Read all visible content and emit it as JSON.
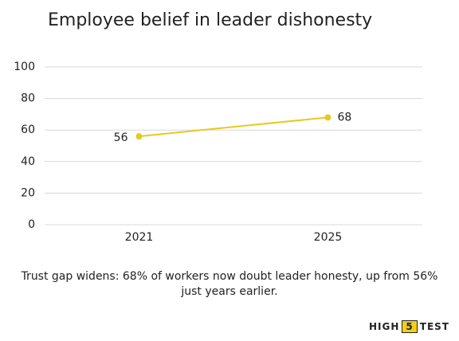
{
  "chart_data": {
    "type": "line",
    "title": "Employee belief in leader dishonesty",
    "categories": [
      "2021",
      "2025"
    ],
    "values": [
      56,
      68
    ],
    "color": "#e8c920",
    "ylim": [
      0,
      100
    ],
    "yticks": [
      0,
      20,
      40,
      60,
      80,
      100
    ],
    "grid": true,
    "annotation": "Trust gap widens: 68% of workers now doubt leader honesty, up from 56% just years earlier."
  },
  "brand": {
    "left": "HIGH",
    "mark": "5",
    "right": "TEST"
  }
}
